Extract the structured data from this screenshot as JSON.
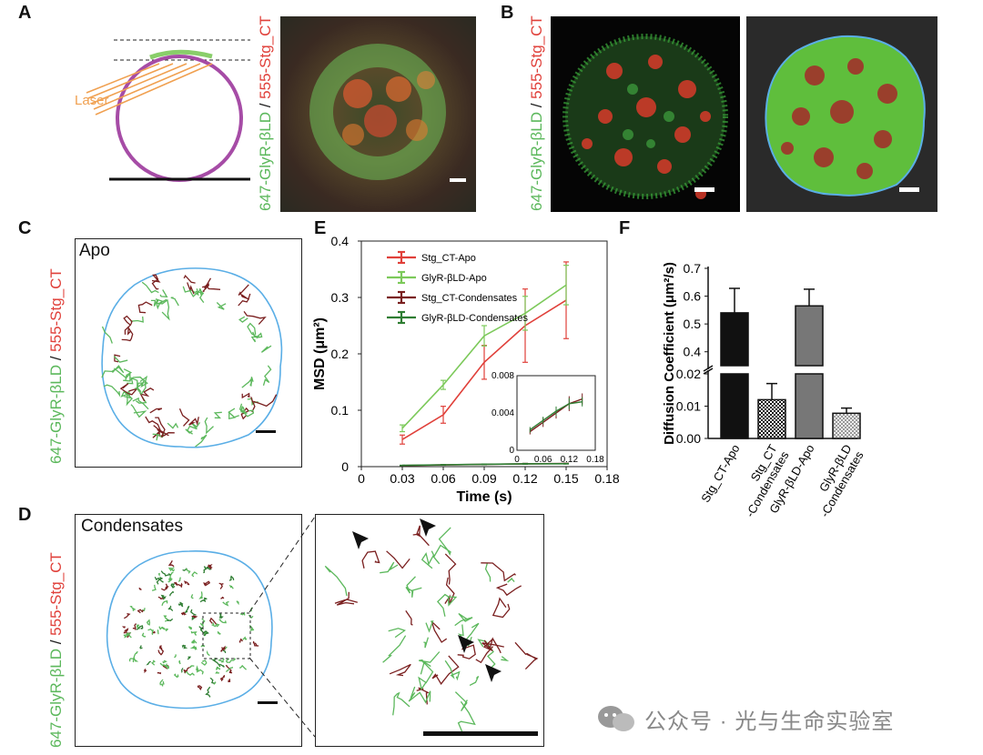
{
  "panels": {
    "A": {
      "label": "A",
      "laser": "Laser",
      "ylabel_green": "647-GlyR-βLD",
      "ylabel_sep": " / ",
      "ylabel_red": "555-Stg_CT"
    },
    "B": {
      "label": "B",
      "ylabel_green": "647-GlyR-βLD",
      "ylabel_sep": " / ",
      "ylabel_red": "555-Stg_CT"
    },
    "C": {
      "label": "C",
      "title": "Apo",
      "ylabel_green": "647-GlyR-βLD",
      "ylabel_sep": " / ",
      "ylabel_red": "555-Stg_CT"
    },
    "D": {
      "label": "D",
      "title": "Condensates",
      "ylabel_green": "647-GlyR-βLD",
      "ylabel_sep": " / ",
      "ylabel_red": "555-Stg_CT"
    },
    "E": {
      "label": "E"
    },
    "F": {
      "label": "F"
    }
  },
  "colors": {
    "green": "#5cb85c",
    "red": "#e0403a",
    "darkred": "#7a1f1f",
    "darkgreen": "#2e7d32",
    "cellOutline": "#5aaee6",
    "purple": "#a64ca6",
    "orange": "#f0a050"
  },
  "chart_data": [
    {
      "type": "line",
      "xlabel": "Time (s)",
      "ylabel": "MSD (μm²)",
      "xlim": [
        0,
        0.18
      ],
      "ylim": [
        0,
        0.4
      ],
      "xticks": [
        "0",
        "0.03",
        "0.06",
        "0.09",
        "0.12",
        "0.15",
        "0.18"
      ],
      "yticks": [
        "0",
        "0.1",
        "0.2",
        "0.3",
        "0.4"
      ],
      "x": [
        0.03,
        0.06,
        0.09,
        0.12,
        0.15
      ],
      "series": [
        {
          "name": "Stg_CT-Apo",
          "color": "#e0403a",
          "values": [
            0.048,
            0.092,
            0.185,
            0.25,
            0.295
          ],
          "err": [
            0.008,
            0.015,
            0.03,
            0.065,
            0.068
          ]
        },
        {
          "name": "GlyR-βLD-Apo",
          "color": "#7cc95a",
          "values": [
            0.068,
            0.145,
            0.232,
            0.272,
            0.322
          ],
          "err": [
            0.006,
            0.008,
            0.018,
            0.03,
            0.035
          ]
        },
        {
          "name": "Stg_CT-Condensates",
          "color": "#7a1f1f",
          "values": [
            0.002,
            0.003,
            0.004,
            0.005,
            0.0055
          ],
          "err": [
            0.0003,
            0.0005,
            0.0006,
            0.0008,
            0.0006
          ]
        },
        {
          "name": "GlyR-βLD-Condensates",
          "color": "#2e7d32",
          "values": [
            0.0022,
            0.0032,
            0.0042,
            0.005,
            0.0052
          ],
          "err": [
            0.0003,
            0.0004,
            0.0005,
            0.0006,
            0.0005
          ]
        }
      ],
      "inset": {
        "xlim": [
          0,
          0.18
        ],
        "ylim": [
          0,
          0.008
        ],
        "xticks": [
          "0",
          "0.06",
          "0.12",
          "0.18"
        ],
        "yticks": [
          "0",
          "0.004",
          "0.008"
        ]
      }
    },
    {
      "type": "bar",
      "ylabel": "Diffusion Coefficient (μm²/s)",
      "categories": [
        "Stg_CT-Apo",
        "Stg_CT -Condensates",
        "GlyR-βLD-Apo",
        "GlyR-βLD -Condensates"
      ],
      "values": [
        0.54,
        0.012,
        0.565,
        0.0078
      ],
      "err": [
        0.088,
        0.005,
        0.06,
        0.0016
      ],
      "broken_axis": {
        "lower": [
          0,
          0.02
        ],
        "upper": [
          0.3,
          0.7
        ]
      },
      "yticks_upper": [
        "0.4",
        "0.5",
        "0.6",
        "0.7"
      ],
      "yticks_lower": [
        "0.00",
        "0.01",
        "0.02"
      ],
      "fills": [
        "black",
        "checker-black",
        "gray",
        "checker-gray"
      ]
    }
  ],
  "watermark": "公众号 · 光与生命实验室"
}
